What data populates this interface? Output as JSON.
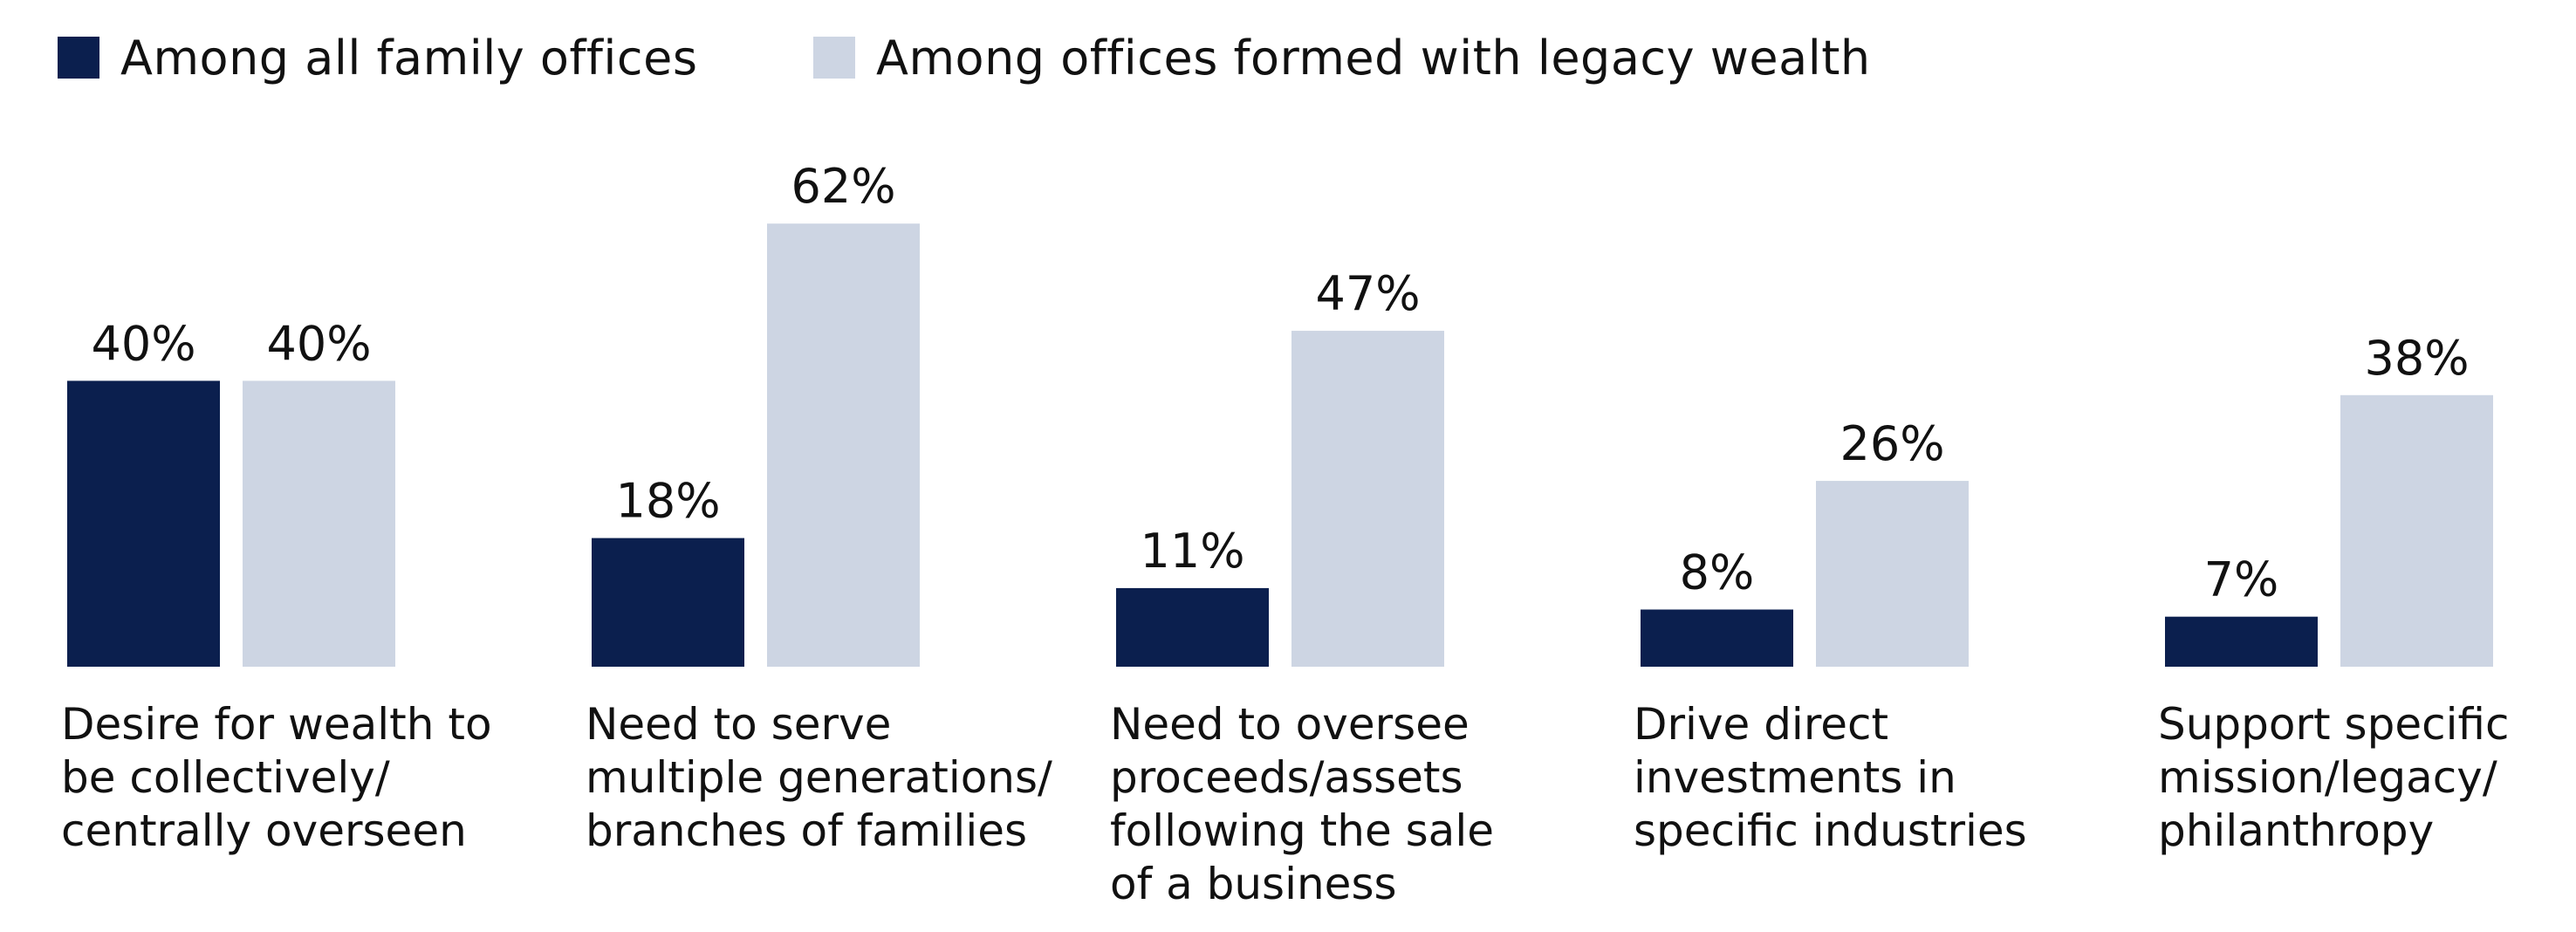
{
  "chart_data": {
    "type": "bar",
    "title": "",
    "xlabel": "",
    "ylabel": "",
    "ylim": [
      0,
      70
    ],
    "grid": false,
    "legend_position": "top-left",
    "categories": [
      "Desire for wealth to\nbe collectively/\ncentrally overseen",
      "Need to serve\nmultiple generations/\nbranches of families",
      "Need to oversee\nproceeds/assets\nfollowing the sale\nof a business",
      "Drive direct\ninvestments in\nspecific industries",
      "Support specific\nmission/legacy/\nphilanthropy"
    ],
    "series": [
      {
        "name": "Among all family offices",
        "color": "#0b1f4e",
        "values": [
          40,
          18,
          11,
          8,
          7
        ],
        "labels": [
          "40%",
          "18%",
          "11%",
          "8%",
          "7%"
        ]
      },
      {
        "name": "Among offices formed with legacy wealth",
        "color": "#cdd5e3",
        "values": [
          40,
          62,
          47,
          26,
          38
        ],
        "labels": [
          "40%",
          "62%",
          "47%",
          "26%",
          "38%"
        ]
      }
    ]
  }
}
